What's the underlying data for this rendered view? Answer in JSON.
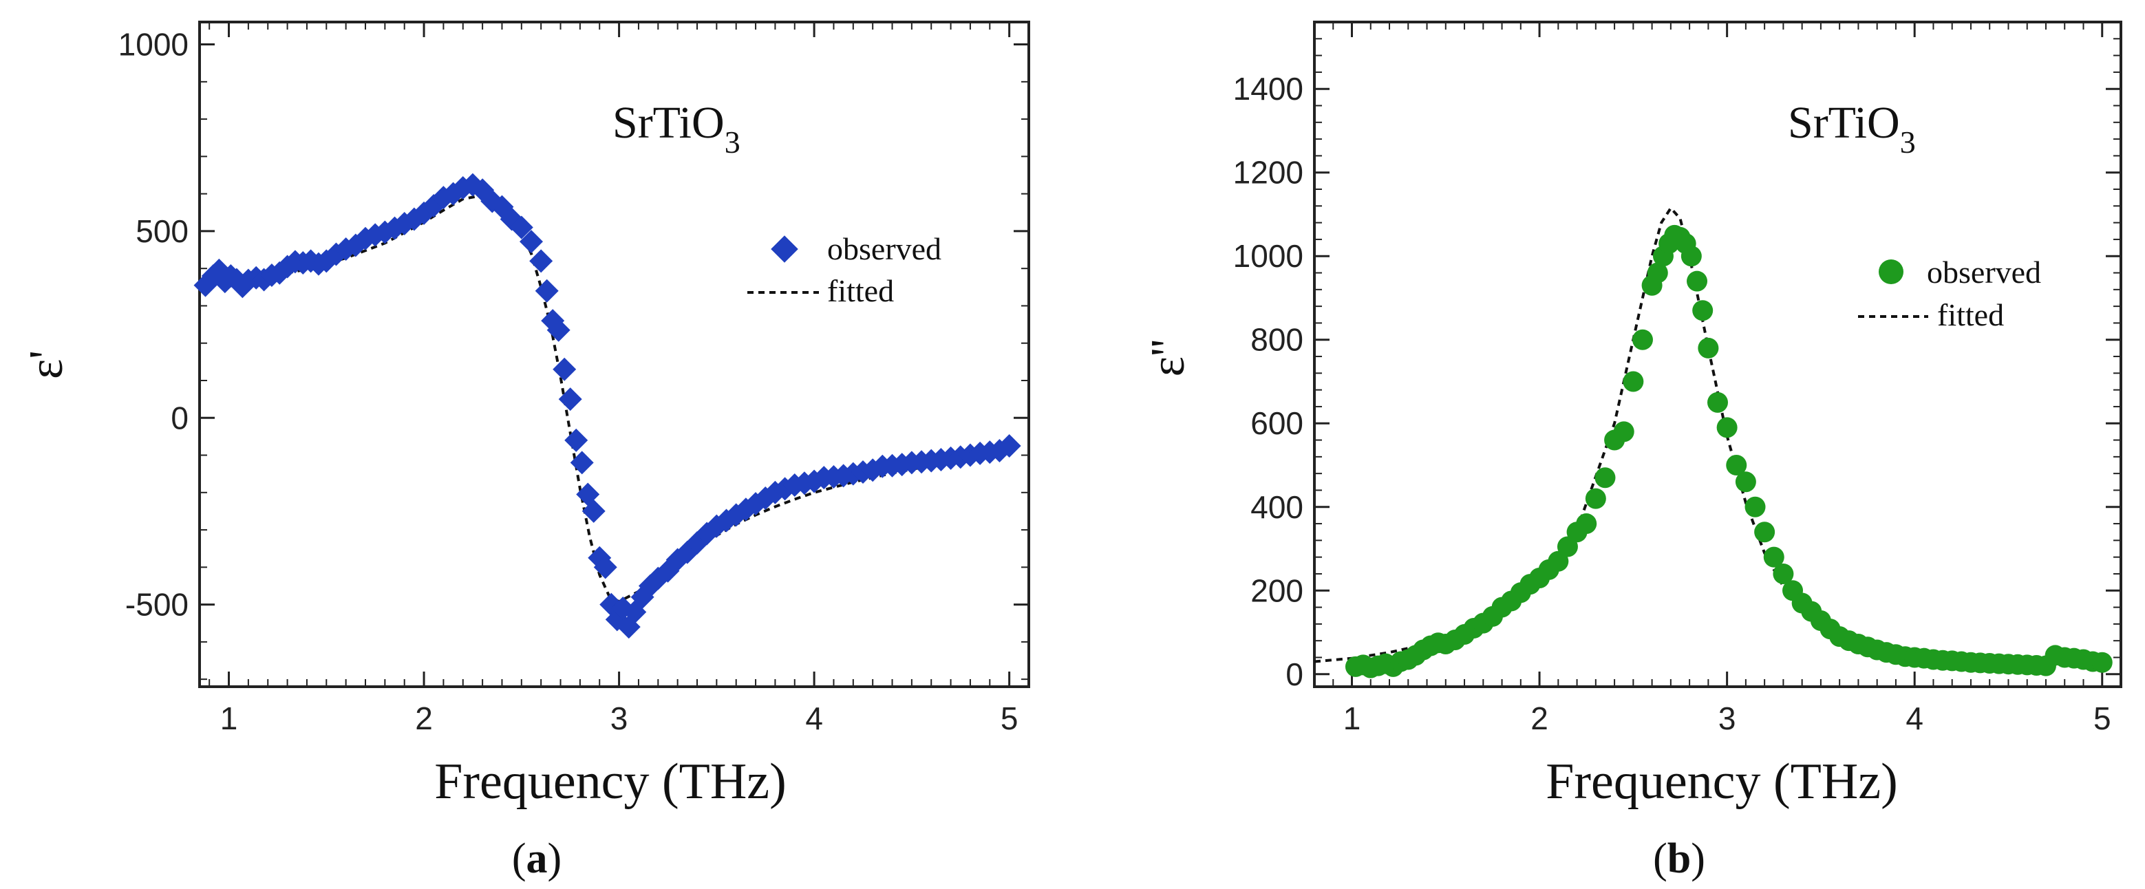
{
  "chart_data": [
    {
      "type": "scatter",
      "panel_label": "a",
      "title": "SrTiO",
      "title_subscript": "3",
      "xlabel": "Frequency (THz)",
      "ylabel": "ε'",
      "xlim": [
        0.85,
        5.1
      ],
      "ylim": [
        -720,
        1060
      ],
      "xticks": [
        1,
        2,
        3,
        4,
        5
      ],
      "yticks": [
        -500,
        0,
        500,
        1000
      ],
      "legend_position": "right",
      "series": [
        {
          "name": "observed",
          "marker": "diamond",
          "color": "#1f3fbf",
          "x": [
            0.88,
            0.92,
            0.95,
            0.98,
            1.01,
            1.04,
            1.07,
            1.1,
            1.14,
            1.18,
            1.22,
            1.26,
            1.3,
            1.34,
            1.38,
            1.42,
            1.46,
            1.5,
            1.55,
            1.6,
            1.65,
            1.7,
            1.75,
            1.8,
            1.85,
            1.9,
            1.95,
            2.0,
            2.05,
            2.1,
            2.15,
            2.2,
            2.25,
            2.3,
            2.35,
            2.4,
            2.45,
            2.5,
            2.55,
            2.6,
            2.63,
            2.66,
            2.69,
            2.72,
            2.75,
            2.78,
            2.81,
            2.84,
            2.87,
            2.9,
            2.93,
            2.96,
            2.99,
            3.02,
            3.05,
            3.08,
            3.12,
            3.16,
            3.2,
            3.25,
            3.3,
            3.35,
            3.4,
            3.45,
            3.5,
            3.55,
            3.6,
            3.65,
            3.7,
            3.75,
            3.8,
            3.85,
            3.9,
            3.95,
            4.0,
            4.05,
            4.1,
            4.15,
            4.2,
            4.25,
            4.3,
            4.35,
            4.4,
            4.45,
            4.5,
            4.55,
            4.6,
            4.65,
            4.7,
            4.75,
            4.8,
            4.85,
            4.9,
            4.95,
            5.0
          ],
          "y": [
            355,
            380,
            395,
            365,
            380,
            370,
            352,
            368,
            375,
            370,
            382,
            388,
            405,
            418,
            415,
            420,
            412,
            420,
            438,
            452,
            462,
            480,
            490,
            497,
            508,
            520,
            532,
            548,
            568,
            590,
            600,
            616,
            624,
            610,
            580,
            565,
            532,
            510,
            472,
            420,
            340,
            260,
            235,
            130,
            50,
            -60,
            -120,
            -205,
            -250,
            -375,
            -400,
            -500,
            -540,
            -510,
            -560,
            -520,
            -480,
            -450,
            -430,
            -410,
            -380,
            -360,
            -335,
            -310,
            -290,
            -275,
            -260,
            -245,
            -230,
            -215,
            -200,
            -190,
            -180,
            -175,
            -170,
            -160,
            -158,
            -155,
            -150,
            -145,
            -140,
            -130,
            -128,
            -125,
            -120,
            -118,
            -115,
            -112,
            -108,
            -105,
            -100,
            -95,
            -92,
            -88,
            -75
          ]
        },
        {
          "name": "fitted",
          "line_style": "dashed",
          "color": "#111111",
          "x": [
            0.85,
            1.0,
            1.2,
            1.4,
            1.6,
            1.8,
            2.0,
            2.1,
            2.2,
            2.3,
            2.4,
            2.5,
            2.55,
            2.6,
            2.65,
            2.7,
            2.75,
            2.8,
            2.85,
            2.9,
            2.95,
            3.0,
            3.1,
            3.2,
            3.3,
            3.4,
            3.5,
            3.6,
            3.7,
            3.8,
            3.9,
            4.0,
            4.2,
            4.4,
            4.6,
            4.8,
            5.0
          ],
          "y": [
            355,
            365,
            378,
            398,
            428,
            468,
            524,
            556,
            586,
            596,
            570,
            495,
            440,
            350,
            245,
            110,
            -40,
            -190,
            -320,
            -420,
            -478,
            -492,
            -465,
            -425,
            -385,
            -348,
            -315,
            -285,
            -260,
            -238,
            -218,
            -200,
            -172,
            -148,
            -128,
            -110,
            -95
          ]
        }
      ]
    },
    {
      "type": "scatter",
      "panel_label": "b",
      "title": "SrTiO",
      "title_subscript": "3",
      "xlabel": "Frequency (THz)",
      "ylabel": "ε''",
      "xlim": [
        0.8,
        5.1
      ],
      "ylim": [
        -30,
        1560
      ],
      "xticks": [
        1,
        2,
        3,
        4,
        5
      ],
      "yticks": [
        0,
        200,
        400,
        600,
        800,
        1000,
        1200,
        1400
      ],
      "legend_position": "right",
      "series": [
        {
          "name": "observed",
          "marker": "circle",
          "color": "#1e9a1e",
          "x": [
            1.02,
            1.06,
            1.1,
            1.14,
            1.18,
            1.22,
            1.26,
            1.3,
            1.34,
            1.38,
            1.42,
            1.46,
            1.5,
            1.55,
            1.6,
            1.65,
            1.7,
            1.75,
            1.8,
            1.85,
            1.9,
            1.95,
            2.0,
            2.05,
            2.1,
            2.15,
            2.2,
            2.25,
            2.3,
            2.35,
            2.4,
            2.45,
            2.5,
            2.55,
            2.6,
            2.63,
            2.66,
            2.69,
            2.72,
            2.75,
            2.78,
            2.81,
            2.84,
            2.87,
            2.9,
            2.95,
            3.0,
            3.05,
            3.1,
            3.15,
            3.2,
            3.25,
            3.3,
            3.35,
            3.4,
            3.45,
            3.5,
            3.55,
            3.6,
            3.65,
            3.7,
            3.75,
            3.8,
            3.85,
            3.9,
            3.95,
            4.0,
            4.05,
            4.1,
            4.15,
            4.2,
            4.25,
            4.3,
            4.35,
            4.4,
            4.45,
            4.5,
            4.55,
            4.6,
            4.65,
            4.7,
            4.75,
            4.8,
            4.85,
            4.9,
            4.95,
            5.0
          ],
          "y": [
            18,
            22,
            15,
            20,
            25,
            18,
            30,
            35,
            45,
            58,
            68,
            75,
            72,
            82,
            95,
            110,
            122,
            138,
            160,
            175,
            195,
            215,
            230,
            250,
            270,
            305,
            340,
            360,
            420,
            470,
            560,
            580,
            700,
            800,
            930,
            960,
            1000,
            1030,
            1050,
            1045,
            1030,
            1000,
            940,
            870,
            780,
            650,
            590,
            500,
            460,
            400,
            340,
            280,
            240,
            200,
            170,
            150,
            128,
            108,
            90,
            80,
            72,
            65,
            58,
            52,
            47,
            42,
            40,
            38,
            35,
            33,
            32,
            30,
            28,
            27,
            26,
            25,
            24,
            23,
            22,
            21,
            20,
            45,
            40,
            38,
            35,
            30,
            28
          ]
        },
        {
          "name": "fitted",
          "line_style": "dashed",
          "color": "#111111",
          "x": [
            0.8,
            1.0,
            1.2,
            1.4,
            1.6,
            1.8,
            2.0,
            2.2,
            2.4,
            2.5,
            2.6,
            2.65,
            2.7,
            2.75,
            2.8,
            2.9,
            3.0,
            3.1,
            3.2,
            3.3,
            3.4,
            3.5,
            3.6,
            3.8,
            4.0,
            4.2,
            4.4,
            4.6,
            4.8,
            5.0
          ],
          "y": [
            30,
            38,
            52,
            72,
            100,
            140,
            215,
            345,
            600,
            800,
            1000,
            1080,
            1115,
            1090,
            1000,
            780,
            570,
            410,
            290,
            210,
            155,
            118,
            92,
            62,
            46,
            38,
            33,
            31,
            29,
            28
          ]
        }
      ]
    }
  ]
}
